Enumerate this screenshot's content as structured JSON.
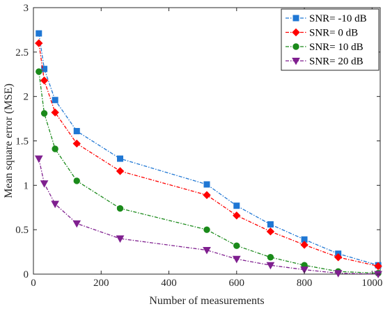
{
  "chart_data": {
    "type": "line",
    "title": "",
    "xlabel": "Number of measurements",
    "ylabel": "Mean square error (MSE)",
    "xlim": [
      0,
      1024
    ],
    "ylim": [
      0,
      3
    ],
    "xticks": [
      0,
      200,
      400,
      600,
      800,
      1000
    ],
    "xtick_labels": [
      "0",
      "200",
      "400",
      "600",
      "800",
      "1000"
    ],
    "yticks": [
      0,
      0.5,
      1,
      1.5,
      2,
      2.5,
      3
    ],
    "ytick_labels": [
      "0",
      "0.5",
      "1",
      "1.5",
      "2",
      "2.5",
      "3"
    ],
    "grid": false,
    "legend_position": "top-right",
    "x": [
      16,
      32,
      64,
      128,
      256,
      512,
      600,
      700,
      800,
      900,
      1018
    ],
    "series": [
      {
        "name": "SNR= -10 dB",
        "color": "#1f77d4",
        "marker": "square",
        "line_style": "dash-dot",
        "values": [
          2.71,
          2.31,
          1.96,
          1.61,
          1.3,
          1.01,
          0.77,
          0.56,
          0.39,
          0.23,
          0.1
        ]
      },
      {
        "name": "SNR= 0 dB",
        "color": "#ff0000",
        "marker": "diamond",
        "line_style": "dash-dot",
        "values": [
          2.6,
          2.18,
          1.82,
          1.47,
          1.16,
          0.89,
          0.66,
          0.48,
          0.33,
          0.19,
          0.09
        ]
      },
      {
        "name": "SNR= 10 dB",
        "color": "#1a8a1a",
        "marker": "circle",
        "line_style": "dash-dot",
        "values": [
          2.28,
          1.81,
          1.41,
          1.05,
          0.74,
          0.5,
          0.32,
          0.19,
          0.1,
          0.03,
          0.01
        ]
      },
      {
        "name": "SNR= 20 dB",
        "color": "#7f1f8f",
        "marker": "triangle-down",
        "line_style": "dash-dot",
        "values": [
          1.3,
          1.02,
          0.79,
          0.57,
          0.4,
          0.27,
          0.17,
          0.1,
          0.05,
          0.01,
          0.0
        ]
      }
    ]
  }
}
